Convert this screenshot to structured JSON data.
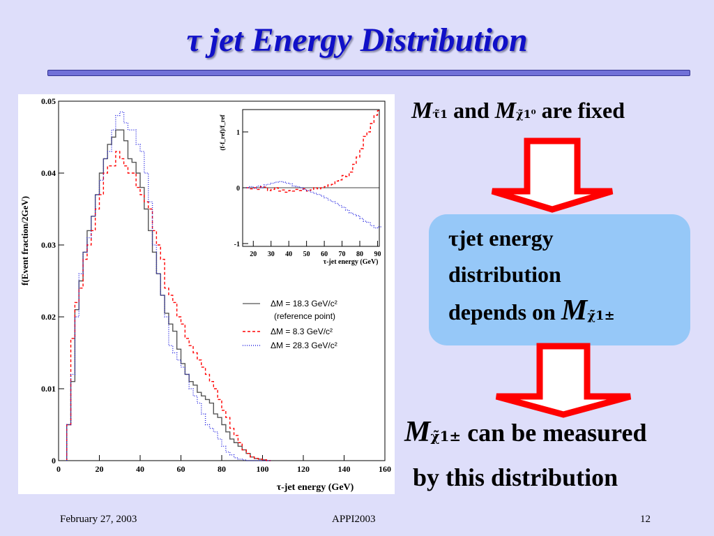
{
  "slide": {
    "title": "τ jet  Energy Distribution",
    "condition": {
      "m1": "M",
      "m1_sub": "τ̃1",
      "and": "and",
      "m2": "M",
      "m2_sub": "χ̃1⁰",
      "rest": "are fixed"
    },
    "box": {
      "line1": "τjet energy",
      "line2": "distribution",
      "line3": "depends on",
      "m": "M",
      "m_sub": "χ̃1±"
    },
    "conclusion": {
      "m": "M",
      "m_sub": "χ̃1±",
      "line1": "can be measured",
      "line2": "by this distribution"
    },
    "footer": {
      "date": "February 27, 2003",
      "conference": "APPI2003",
      "page": "12"
    },
    "colors": {
      "background": "#dedefa",
      "title": "#1010c8",
      "arrow": "#ff0000",
      "box": "#96c8f8"
    }
  },
  "chart_data": [
    {
      "type": "line",
      "style": "histogram",
      "xlabel": "τ-jet energy (GeV)",
      "ylabel": "f(Event fraction/2GeV)",
      "xlim": [
        0,
        160
      ],
      "ylim": [
        0,
        0.05
      ],
      "xticks": [
        "0",
        "20",
        "40",
        "60",
        "80",
        "100",
        "120",
        "140",
        "160"
      ],
      "yticks": [
        "0",
        "0.01",
        "0.02",
        "0.03",
        "0.04",
        "0.05"
      ],
      "bin_width": 2,
      "x": [
        4,
        6,
        8,
        10,
        12,
        14,
        16,
        18,
        20,
        22,
        24,
        26,
        28,
        30,
        32,
        34,
        36,
        38,
        40,
        42,
        44,
        46,
        48,
        50,
        52,
        54,
        56,
        58,
        60,
        62,
        64,
        66,
        68,
        70,
        72,
        74,
        76,
        78,
        80,
        82,
        84,
        86,
        88,
        90,
        92,
        94,
        96,
        98,
        100,
        102
      ],
      "series": [
        {
          "name": "ΔM = 18.3 GeV/c²",
          "label2": "(reference point)",
          "color": "#555555",
          "dash": "",
          "values": [
            0.005,
            0.011,
            0.021,
            0.025,
            0.029,
            0.032,
            0.034,
            0.037,
            0.04,
            0.042,
            0.044,
            0.045,
            0.046,
            0.046,
            0.0445,
            0.042,
            0.0415,
            0.04,
            0.038,
            0.035,
            0.032,
            0.029,
            0.026,
            0.023,
            0.0205,
            0.019,
            0.018,
            0.0155,
            0.0135,
            0.012,
            0.011,
            0.0105,
            0.0095,
            0.009,
            0.0085,
            0.008,
            0.0065,
            0.006,
            0.005,
            0.004,
            0.003,
            0.0025,
            0.002,
            0.0015,
            0.001,
            0.0005,
            0.0003,
            0.0002,
            0.0001,
            0
          ]
        },
        {
          "name": "ΔM =  8.3 GeV/c²",
          "color": "#ff0000",
          "dash": "4,3",
          "values": [
            0.005,
            0.017,
            0.022,
            0.024,
            0.028,
            0.03,
            0.032,
            0.035,
            0.037,
            0.04,
            0.041,
            0.041,
            0.043,
            0.042,
            0.041,
            0.04,
            0.04,
            0.038,
            0.037,
            0.036,
            0.035,
            0.032,
            0.03,
            0.028,
            0.024,
            0.023,
            0.022,
            0.02,
            0.019,
            0.017,
            0.016,
            0.015,
            0.014,
            0.013,
            0.012,
            0.011,
            0.01,
            0.0085,
            0.007,
            0.006,
            0.0045,
            0.0035,
            0.0025,
            0.0015,
            0.001,
            0.0005,
            0.0003,
            0.0002,
            0.0001,
            0
          ]
        },
        {
          "name": "ΔM = 28.3 GeV/c²",
          "color": "#2020e0",
          "dash": "1,2",
          "values": [
            0.005,
            0.012,
            0.02,
            0.026,
            0.029,
            0.031,
            0.034,
            0.037,
            0.039,
            0.042,
            0.043,
            0.046,
            0.048,
            0.0485,
            0.047,
            0.046,
            0.046,
            0.044,
            0.043,
            0.04,
            0.036,
            0.03,
            0.026,
            0.023,
            0.02,
            0.016,
            0.015,
            0.014,
            0.013,
            0.012,
            0.01,
            0.009,
            0.008,
            0.0065,
            0.005,
            0.0045,
            0.004,
            0.003,
            0.002,
            0.0012,
            0.0008,
            0.0004,
            0.0002,
            0.0001,
            0,
            0,
            0,
            0,
            0,
            0
          ]
        }
      ]
    },
    {
      "type": "line",
      "style": "histogram",
      "xlabel": "τ-jet energy (GeV)",
      "ylabel": "(f-f_ref)/f_ref",
      "xlim": [
        14,
        91
      ],
      "ylim": [
        -1.05,
        1.4
      ],
      "xticks": [
        "20",
        "30",
        "40",
        "50",
        "60",
        "70",
        "80",
        "90"
      ],
      "yticks": [
        "-1",
        "0",
        "1"
      ],
      "x": [
        16,
        18,
        20,
        22,
        24,
        26,
        28,
        30,
        32,
        34,
        36,
        38,
        40,
        42,
        44,
        46,
        48,
        50,
        52,
        54,
        56,
        58,
        60,
        62,
        64,
        66,
        68,
        70,
        72,
        74,
        76,
        78,
        80,
        82,
        84,
        86,
        88,
        90
      ],
      "series": [
        {
          "name": "ΔM =  8.3 GeV/c²",
          "color": "#ff0000",
          "dash": "4,3",
          "values": [
            0.0,
            -0.02,
            0.0,
            -0.03,
            0.02,
            0.01,
            -0.05,
            -0.03,
            0.0,
            -0.06,
            -0.04,
            -0.08,
            -0.05,
            -0.06,
            -0.03,
            -0.05,
            -0.02,
            -0.06,
            -0.04,
            0.0,
            -0.02,
            0.0,
            0.02,
            0.05,
            0.06,
            0.12,
            0.14,
            0.22,
            0.2,
            0.28,
            0.42,
            0.55,
            0.7,
            0.92,
            1.0,
            1.15,
            1.3,
            1.38
          ]
        },
        {
          "name": "ΔM = 28.3 GeV/c²",
          "color": "#2020e0",
          "dash": "1,2",
          "values": [
            0.0,
            0.02,
            -0.01,
            0.03,
            0.0,
            0.05,
            0.06,
            0.08,
            0.1,
            0.11,
            0.1,
            0.08,
            0.07,
            0.03,
            0.02,
            0.0,
            -0.03,
            -0.05,
            -0.08,
            -0.1,
            -0.12,
            -0.15,
            -0.18,
            -0.22,
            -0.25,
            -0.28,
            -0.32,
            -0.35,
            -0.4,
            -0.45,
            -0.48,
            -0.5,
            -0.55,
            -0.6,
            -0.62,
            -0.68,
            -0.72,
            -0.7
          ]
        }
      ]
    }
  ]
}
